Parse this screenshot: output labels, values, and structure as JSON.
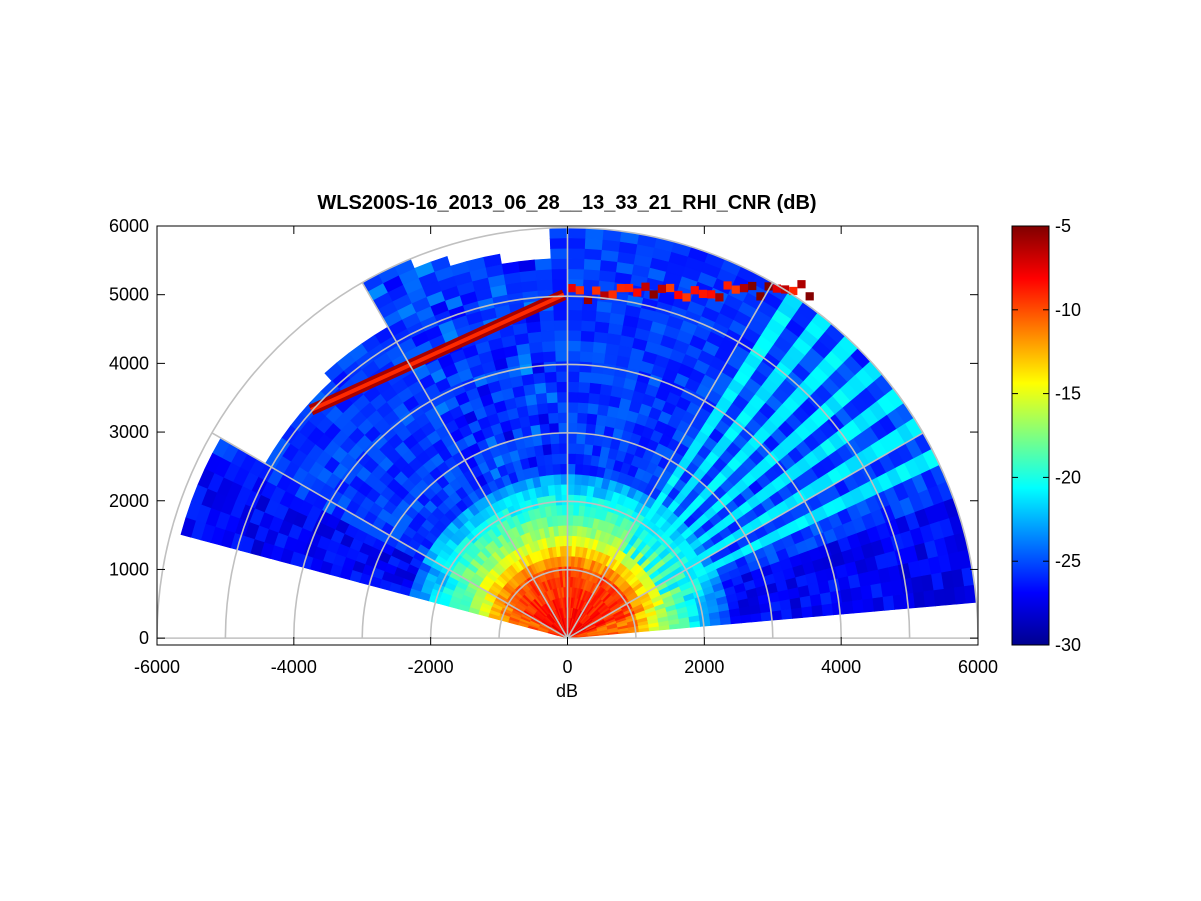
{
  "chart_data": {
    "type": "heatmap",
    "subtype": "polar-rhi-scan",
    "title": "WLS200S-16_2013_06_28__13_33_21_RHI_CNR (dB)",
    "xlabel": "dB",
    "ylabel": "",
    "xlim": [
      -6000,
      6000
    ],
    "ylim": [
      -100,
      6000
    ],
    "x_ticks": [
      -6000,
      -4000,
      -2000,
      0,
      2000,
      4000,
      6000
    ],
    "y_ticks": [
      0,
      1000,
      2000,
      3000,
      4000,
      5000,
      6000
    ],
    "x_tick_labels": [
      "-6000",
      "-4000",
      "-2000",
      "0",
      "2000",
      "4000",
      "6000"
    ],
    "y_tick_labels": [
      "0",
      "1000",
      "2000",
      "3000",
      "4000",
      "5000",
      "6000"
    ],
    "polar_grid_radii": [
      1000,
      2000,
      3000,
      4000,
      5000,
      6000
    ],
    "polar_grid_angles_deg": [
      30,
      60,
      90,
      120,
      150
    ],
    "grid": true,
    "colorbar": {
      "label": "",
      "min": -30,
      "max": -5,
      "ticks": [
        -30,
        -25,
        -20,
        -15,
        -10,
        -5
      ],
      "tick_labels": [
        "-30",
        "-25",
        "-20",
        "-15",
        "-10",
        "-5"
      ],
      "colormap": "jet",
      "placement": "right"
    },
    "scan_coverage": {
      "elevation_min_deg": 5,
      "elevation_max_deg": 165,
      "range_max_m": 6000,
      "range_unit": "m"
    },
    "features": [
      {
        "name": "near-range high CNR region",
        "range_m": [
          0,
          1200
        ],
        "value_db": -10
      },
      {
        "name": "decaying mid-range region",
        "range_m": [
          1200,
          2500
        ],
        "value_db": -18
      },
      {
        "name": "far-range noise floor",
        "range_m": [
          2500,
          6000
        ],
        "value_db": -26
      },
      {
        "name": "hard target line (left)",
        "value_db": -6
      },
      {
        "name": "cloud layer at ~5000 m",
        "height_m": 5000,
        "value_db": -7
      },
      {
        "name": "low-elevation cyan beams",
        "elevation_deg": [
          20,
          55
        ],
        "value_db": -21
      }
    ]
  },
  "colors": {
    "jet_stops": [
      "#00008f",
      "#0000ff",
      "#00ffff",
      "#ffff00",
      "#ff0000",
      "#800000"
    ],
    "grid": "#c0c0c0",
    "axes": "#000000"
  }
}
